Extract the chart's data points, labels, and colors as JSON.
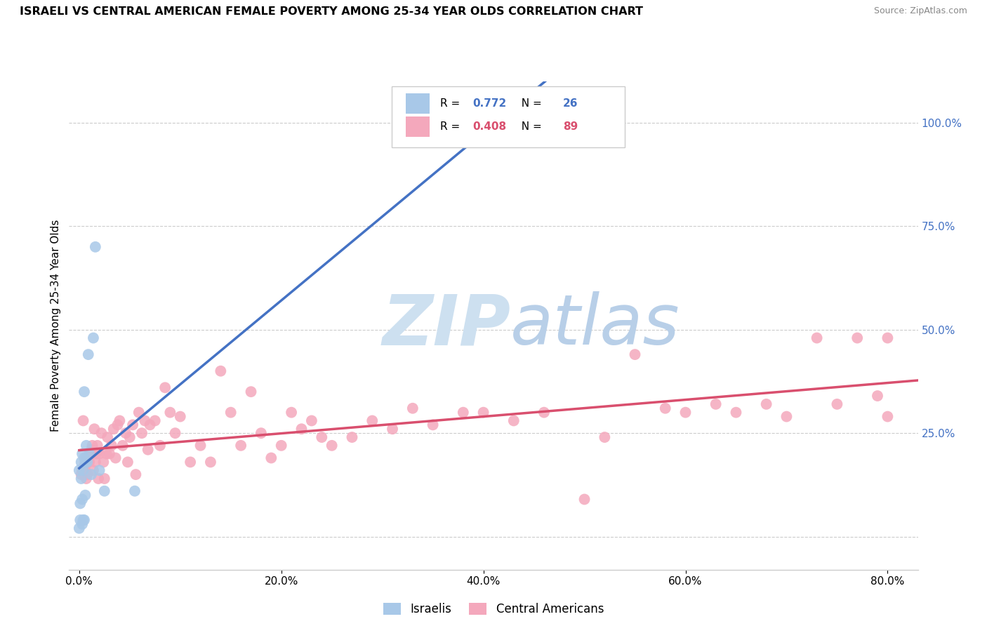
{
  "title": "ISRAELI VS CENTRAL AMERICAN FEMALE POVERTY AMONG 25-34 YEAR OLDS CORRELATION CHART",
  "source": "Source: ZipAtlas.com",
  "ylabel": "Female Poverty Among 25-34 Year Olds",
  "xlabel_ticks": [
    "0.0%",
    "20.0%",
    "40.0%",
    "60.0%",
    "80.0%"
  ],
  "xlabel_vals": [
    0.0,
    0.2,
    0.4,
    0.6,
    0.8
  ],
  "ylabel_ticks_right": [
    "100.0%",
    "75.0%",
    "50.0%",
    "25.0%"
  ],
  "ylabel_vals_right": [
    1.0,
    0.75,
    0.5,
    0.25
  ],
  "xlim": [
    -0.01,
    0.83
  ],
  "ylim": [
    -0.08,
    1.1
  ],
  "israelis_R": 0.772,
  "israelis_N": 26,
  "central_americans_R": 0.408,
  "central_americans_N": 89,
  "israelis_color": "#a8c8e8",
  "central_americans_color": "#f4a8bc",
  "israelis_line_color": "#4472c4",
  "central_americans_line_color": "#d94f6e",
  "watermark_zip_color": "#c8dff0",
  "watermark_atlas_color": "#b0cce0",
  "israelis_x": [
    0.0,
    0.0,
    0.001,
    0.001,
    0.002,
    0.002,
    0.003,
    0.003,
    0.003,
    0.004,
    0.004,
    0.005,
    0.005,
    0.005,
    0.006,
    0.006,
    0.007,
    0.008,
    0.009,
    0.01,
    0.012,
    0.014,
    0.016,
    0.02,
    0.025,
    0.055
  ],
  "israelis_y": [
    0.02,
    0.16,
    0.04,
    0.08,
    0.14,
    0.18,
    0.03,
    0.09,
    0.2,
    0.04,
    0.16,
    0.04,
    0.19,
    0.35,
    0.18,
    0.1,
    0.22,
    0.18,
    0.44,
    0.2,
    0.15,
    0.48,
    0.7,
    0.16,
    0.11,
    0.11
  ],
  "central_americans_x": [
    0.002,
    0.003,
    0.004,
    0.004,
    0.005,
    0.005,
    0.006,
    0.007,
    0.007,
    0.008,
    0.009,
    0.01,
    0.011,
    0.012,
    0.013,
    0.014,
    0.015,
    0.016,
    0.017,
    0.018,
    0.019,
    0.02,
    0.022,
    0.024,
    0.025,
    0.027,
    0.028,
    0.03,
    0.032,
    0.034,
    0.036,
    0.038,
    0.04,
    0.043,
    0.046,
    0.048,
    0.05,
    0.053,
    0.056,
    0.059,
    0.062,
    0.065,
    0.068,
    0.07,
    0.075,
    0.08,
    0.085,
    0.09,
    0.095,
    0.1,
    0.11,
    0.12,
    0.13,
    0.14,
    0.15,
    0.16,
    0.17,
    0.18,
    0.19,
    0.2,
    0.21,
    0.22,
    0.23,
    0.24,
    0.25,
    0.27,
    0.29,
    0.31,
    0.33,
    0.35,
    0.38,
    0.4,
    0.43,
    0.46,
    0.5,
    0.52,
    0.55,
    0.58,
    0.6,
    0.63,
    0.65,
    0.68,
    0.7,
    0.73,
    0.75,
    0.77,
    0.79,
    0.8,
    0.8
  ],
  "central_americans_y": [
    0.15,
    0.16,
    0.16,
    0.28,
    0.15,
    0.17,
    0.16,
    0.14,
    0.19,
    0.15,
    0.18,
    0.18,
    0.2,
    0.21,
    0.22,
    0.16,
    0.26,
    0.18,
    0.2,
    0.22,
    0.14,
    0.2,
    0.25,
    0.18,
    0.14,
    0.2,
    0.24,
    0.2,
    0.22,
    0.26,
    0.19,
    0.27,
    0.28,
    0.22,
    0.25,
    0.18,
    0.24,
    0.27,
    0.15,
    0.3,
    0.25,
    0.28,
    0.21,
    0.27,
    0.28,
    0.22,
    0.36,
    0.3,
    0.25,
    0.29,
    0.18,
    0.22,
    0.18,
    0.4,
    0.3,
    0.22,
    0.35,
    0.25,
    0.19,
    0.22,
    0.3,
    0.26,
    0.28,
    0.24,
    0.22,
    0.24,
    0.28,
    0.26,
    0.31,
    0.27,
    0.3,
    0.3,
    0.28,
    0.3,
    0.09,
    0.24,
    0.44,
    0.31,
    0.3,
    0.32,
    0.3,
    0.32,
    0.29,
    0.48,
    0.32,
    0.48,
    0.34,
    0.29,
    0.48
  ]
}
